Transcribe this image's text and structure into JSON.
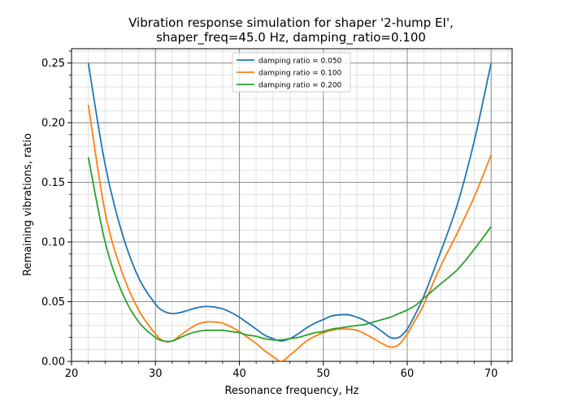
{
  "chart_data": {
    "type": "line",
    "title": "Vibration response simulation for shaper '2-hump EI',",
    "subtitle": "shaper_freq=45.0 Hz, damping_ratio=0.100",
    "xlabel": "Resonance frequency, Hz",
    "ylabel": "Remaining vibrations, ratio",
    "xlim": [
      20,
      72.5
    ],
    "ylim": [
      0,
      0.262
    ],
    "xticks": [
      20,
      30,
      40,
      50,
      60,
      70
    ],
    "yticks": [
      0.0,
      0.05,
      0.1,
      0.15,
      0.2,
      0.25
    ],
    "grid": true,
    "legend_position": "top-center",
    "series": [
      {
        "name": "damping ratio = 0.050",
        "color": "#1f77b4",
        "points": [
          [
            22,
            0.25
          ],
          [
            24,
            0.165
          ],
          [
            26,
            0.108
          ],
          [
            28,
            0.07
          ],
          [
            30,
            0.048
          ],
          [
            31,
            0.042
          ],
          [
            32,
            0.04
          ],
          [
            33,
            0.041
          ],
          [
            34,
            0.043
          ],
          [
            35,
            0.045
          ],
          [
            36,
            0.046
          ],
          [
            37,
            0.0455
          ],
          [
            38,
            0.044
          ],
          [
            39,
            0.041
          ],
          [
            40,
            0.037
          ],
          [
            41,
            0.032
          ],
          [
            42,
            0.027
          ],
          [
            43,
            0.022
          ],
          [
            44,
            0.019
          ],
          [
            45,
            0.017
          ],
          [
            46,
            0.019
          ],
          [
            47,
            0.023
          ],
          [
            48,
            0.028
          ],
          [
            49,
            0.032
          ],
          [
            50,
            0.035
          ],
          [
            51,
            0.038
          ],
          [
            52,
            0.039
          ],
          [
            53,
            0.039
          ],
          [
            54,
            0.037
          ],
          [
            55,
            0.034
          ],
          [
            56,
            0.03
          ],
          [
            57,
            0.025
          ],
          [
            58,
            0.02
          ],
          [
            59,
            0.02
          ],
          [
            60,
            0.027
          ],
          [
            61,
            0.04
          ],
          [
            62,
            0.055
          ],
          [
            64,
            0.092
          ],
          [
            66,
            0.132
          ],
          [
            68,
            0.185
          ],
          [
            70,
            0.25
          ]
        ]
      },
      {
        "name": "damping ratio = 0.100",
        "color": "#ff7f0e",
        "points": [
          [
            22,
            0.215
          ],
          [
            24,
            0.125
          ],
          [
            26,
            0.075
          ],
          [
            28,
            0.043
          ],
          [
            30,
            0.023
          ],
          [
            31,
            0.017
          ],
          [
            32,
            0.017
          ],
          [
            33,
            0.022
          ],
          [
            34,
            0.027
          ],
          [
            35,
            0.031
          ],
          [
            36,
            0.033
          ],
          [
            37,
            0.033
          ],
          [
            38,
            0.032
          ],
          [
            39,
            0.029
          ],
          [
            40,
            0.025
          ],
          [
            41,
            0.02
          ],
          [
            42,
            0.015
          ],
          [
            43,
            0.009
          ],
          [
            44,
            0.004
          ],
          [
            45,
            0.0
          ],
          [
            46,
            0.005
          ],
          [
            47,
            0.011
          ],
          [
            48,
            0.017
          ],
          [
            49,
            0.021
          ],
          [
            50,
            0.024
          ],
          [
            51,
            0.026
          ],
          [
            52,
            0.027
          ],
          [
            53,
            0.027
          ],
          [
            54,
            0.026
          ],
          [
            55,
            0.023
          ],
          [
            56,
            0.019
          ],
          [
            57,
            0.015
          ],
          [
            58,
            0.012
          ],
          [
            59,
            0.014
          ],
          [
            60,
            0.023
          ],
          [
            61,
            0.035
          ],
          [
            62,
            0.048
          ],
          [
            64,
            0.08
          ],
          [
            66,
            0.108
          ],
          [
            68,
            0.138
          ],
          [
            70,
            0.173
          ]
        ]
      },
      {
        "name": "damping ratio = 0.200",
        "color": "#2ca02c",
        "points": [
          [
            22,
            0.171
          ],
          [
            24,
            0.1
          ],
          [
            26,
            0.058
          ],
          [
            28,
            0.033
          ],
          [
            30,
            0.02
          ],
          [
            31,
            0.017
          ],
          [
            32,
            0.017
          ],
          [
            33,
            0.02
          ],
          [
            34,
            0.023
          ],
          [
            35,
            0.025
          ],
          [
            36,
            0.026
          ],
          [
            37,
            0.026
          ],
          [
            38,
            0.026
          ],
          [
            39,
            0.025
          ],
          [
            40,
            0.024
          ],
          [
            41,
            0.022
          ],
          [
            42,
            0.021
          ],
          [
            43,
            0.019
          ],
          [
            44,
            0.018
          ],
          [
            45,
            0.018
          ],
          [
            46,
            0.019
          ],
          [
            47,
            0.02
          ],
          [
            48,
            0.022
          ],
          [
            49,
            0.024
          ],
          [
            50,
            0.025
          ],
          [
            51,
            0.027
          ],
          [
            52,
            0.028
          ],
          [
            53,
            0.029
          ],
          [
            54,
            0.03
          ],
          [
            55,
            0.031
          ],
          [
            56,
            0.033
          ],
          [
            57,
            0.035
          ],
          [
            58,
            0.037
          ],
          [
            59,
            0.04
          ],
          [
            60,
            0.043
          ],
          [
            61,
            0.047
          ],
          [
            62,
            0.053
          ],
          [
            64,
            0.065
          ],
          [
            66,
            0.077
          ],
          [
            68,
            0.094
          ],
          [
            70,
            0.113
          ]
        ]
      }
    ]
  }
}
